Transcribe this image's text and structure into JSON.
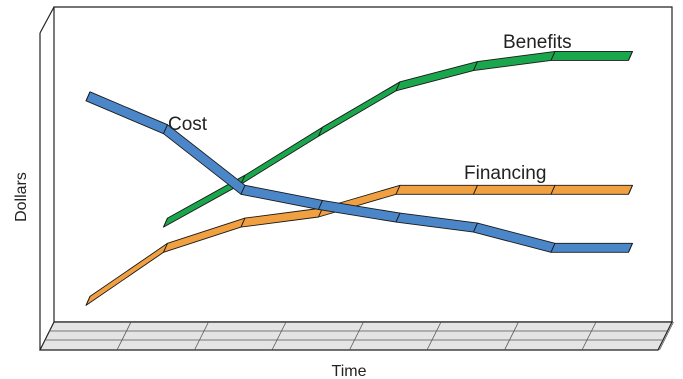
{
  "chart_data": {
    "type": "line",
    "title": "",
    "xlabel": "Time",
    "ylabel": "Dollars",
    "x_ticks_shown": false,
    "y_ticks_shown": false,
    "grid": false,
    "legend": "inline-labels",
    "series": [
      {
        "name": "Cost",
        "color": "#4a86c8",
        "x": [
          0,
          1,
          2,
          3,
          4,
          5,
          6,
          7
        ],
        "y": [
          0.86,
          0.73,
          0.49,
          0.43,
          0.38,
          0.34,
          0.26,
          0.26
        ]
      },
      {
        "name": "Benefits",
        "color": "#1aa64c",
        "x": [
          1,
          2,
          3,
          4,
          5,
          6,
          7
        ],
        "y": [
          0.36,
          0.53,
          0.72,
          0.9,
          0.98,
          1.02,
          1.02
        ]
      },
      {
        "name": "Financing",
        "color": "#f0a040",
        "x": [
          0,
          1,
          2,
          3,
          4,
          5,
          6,
          7
        ],
        "y": [
          0.05,
          0.26,
          0.36,
          0.4,
          0.49,
          0.49,
          0.49,
          0.49
        ]
      }
    ]
  }
}
